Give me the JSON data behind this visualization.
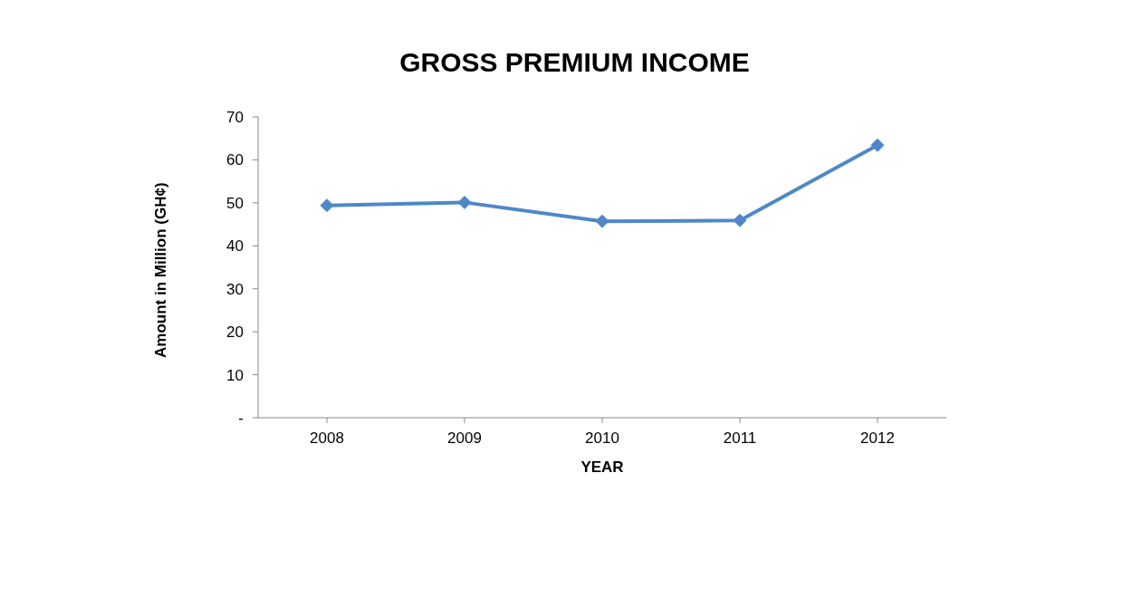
{
  "chart_data": {
    "type": "line",
    "title": "GROSS PREMIUM INCOME",
    "xlabel": "YEAR",
    "ylabel": "Amount in Million (GH¢)",
    "categories": [
      "2008",
      "2009",
      "2010",
      "2011",
      "2012"
    ],
    "series": [
      {
        "color": "#4f88c6",
        "values": [
          49.4,
          50.1,
          45.7,
          45.9,
          63.4
        ]
      }
    ],
    "ylim": [
      0,
      70
    ],
    "yticks": [
      {
        "value": 0,
        "label": "-"
      },
      10,
      20,
      30,
      40,
      50,
      60,
      70
    ],
    "grid": false,
    "marker": "diamond",
    "line_style": "solid"
  }
}
